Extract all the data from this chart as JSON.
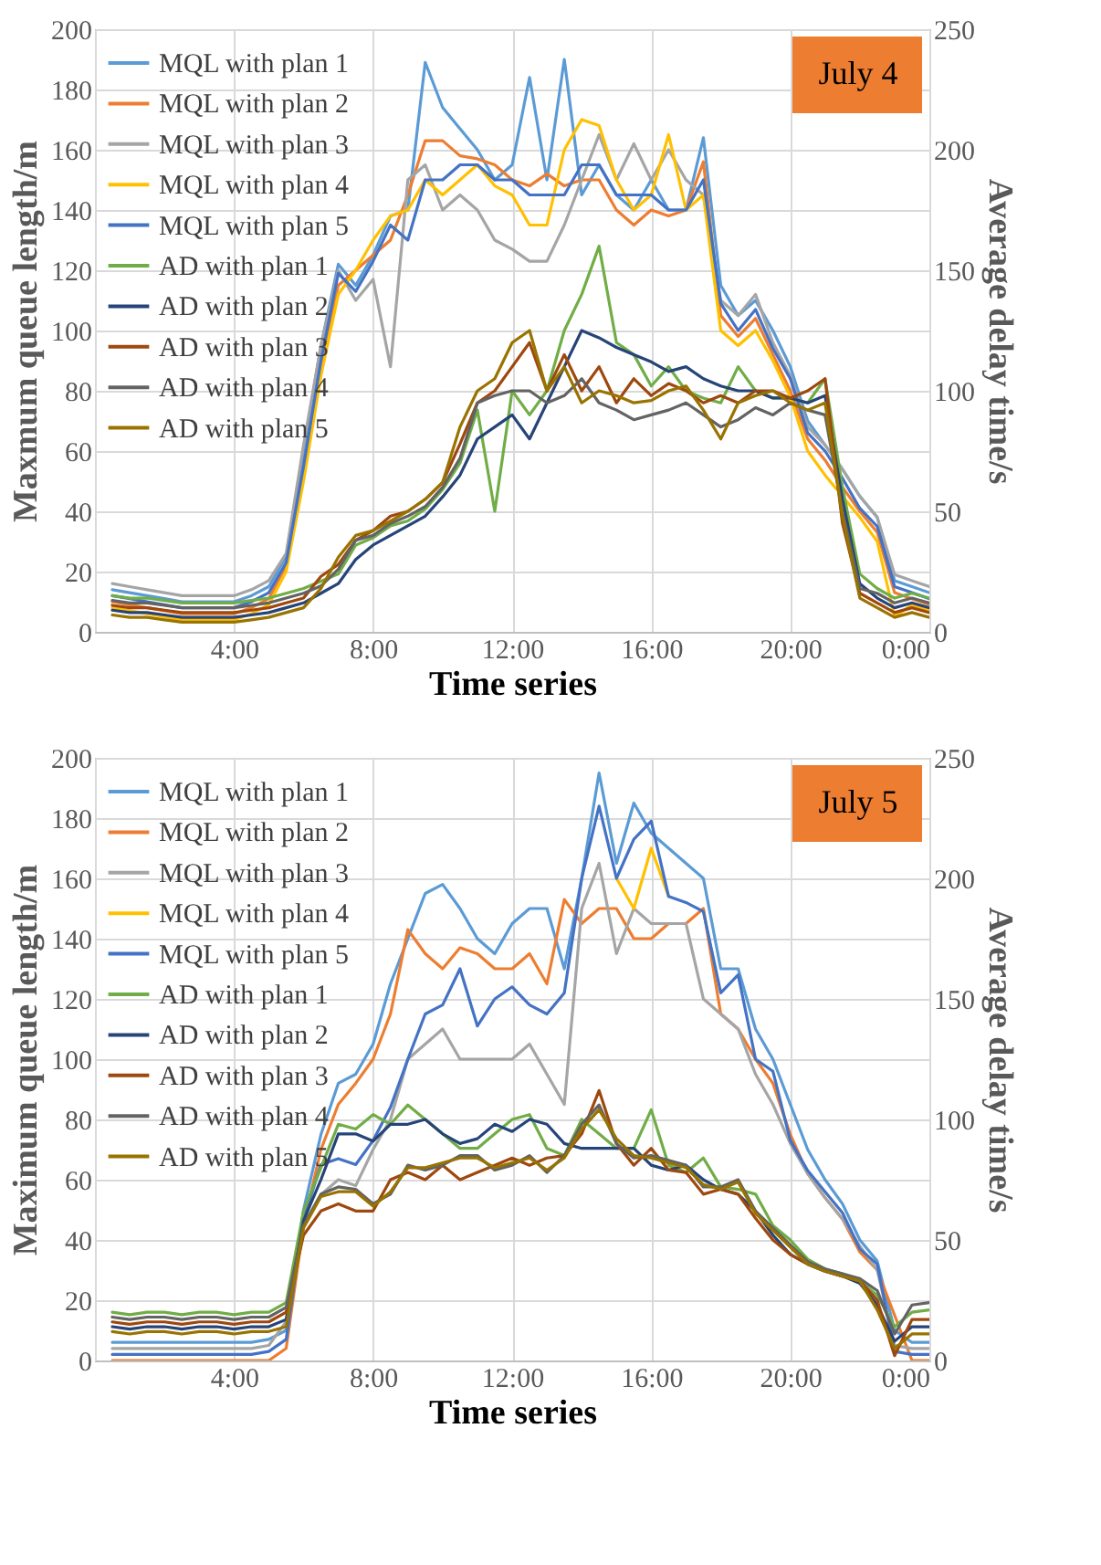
{
  "chart_data": [
    {
      "type": "line",
      "xlabel": "Time series",
      "ylabel": "Maxmum queue length/m",
      "y2label": "Average delay time/s",
      "annotations": [
        "July 4"
      ],
      "grid": true,
      "legend": "top left",
      "xlim": [
        0,
        24
      ],
      "xticks": [
        {
          "value": 0,
          "label": null
        },
        {
          "value": 4,
          "label": "4:00"
        },
        {
          "value": 8,
          "label": "8:00"
        },
        {
          "value": 12,
          "label": "12:00"
        },
        {
          "value": 16,
          "label": "16:00"
        },
        {
          "value": 20,
          "label": "20:00"
        },
        {
          "value": 24,
          "label": "0:00"
        }
      ],
      "ylim": [
        0,
        200
      ],
      "yticks": [
        0,
        20,
        40,
        60,
        80,
        100,
        120,
        140,
        160,
        180,
        200
      ],
      "y2lim": [
        0,
        250
      ],
      "y2ticks": [
        0,
        50,
        100,
        150,
        200,
        250
      ],
      "x": [
        0.5,
        1,
        1.5,
        2,
        2.5,
        3,
        3.5,
        4,
        4.5,
        5,
        5.5,
        6,
        6.5,
        7,
        7.5,
        8,
        8.5,
        9,
        9.5,
        10,
        10.5,
        11,
        11.5,
        12,
        12.5,
        13,
        13.5,
        14,
        14.5,
        15,
        15.5,
        16,
        16.5,
        17,
        17.5,
        18,
        18.5,
        19,
        19.5,
        20,
        20.5,
        21,
        21.5,
        22,
        22.5,
        23,
        23.5,
        24
      ],
      "series": [
        {
          "name": "MQL with  plan 1",
          "color": "#5b9bd5",
          "values": [
            14,
            13,
            12,
            11,
            10,
            10,
            10,
            10,
            12,
            15,
            25,
            60,
            95,
            122,
            115,
            125,
            138,
            140,
            189,
            174,
            167,
            160,
            150,
            155,
            184,
            150,
            190,
            145,
            155,
            145,
            140,
            150,
            140,
            140,
            164,
            115,
            105,
            110,
            100,
            88,
            70,
            62,
            54,
            45,
            38,
            17,
            15,
            13
          ]
        },
        {
          "name": "MQL with plan 2",
          "color": "#ed7d31",
          "values": [
            10,
            9,
            8,
            7,
            6,
            6,
            6,
            6,
            8,
            11,
            22,
            52,
            88,
            115,
            120,
            125,
            130,
            145,
            163,
            163,
            158,
            157,
            155,
            150,
            148,
            152,
            148,
            150,
            150,
            140,
            135,
            140,
            138,
            140,
            156,
            105,
            98,
            104,
            92,
            80,
            64,
            57,
            48,
            40,
            33,
            13,
            11,
            9
          ]
        },
        {
          "name": "MQL with plan 3",
          "color": "#a5a5a5",
          "values": [
            16,
            15,
            14,
            13,
            12,
            12,
            12,
            12,
            14,
            17,
            26,
            62,
            95,
            120,
            110,
            117,
            88,
            150,
            155,
            140,
            145,
            140,
            130,
            127,
            123,
            123,
            135,
            150,
            165,
            150,
            162,
            150,
            160,
            150,
            145,
            110,
            105,
            112,
            96,
            85,
            68,
            62,
            54,
            45,
            38,
            19,
            17,
            15
          ]
        },
        {
          "name": "MQL with plan 4",
          "color": "#ffc000",
          "values": [
            8,
            7,
            6,
            5,
            4,
            4,
            4,
            4,
            6,
            9,
            20,
            50,
            85,
            112,
            120,
            130,
            138,
            140,
            150,
            145,
            150,
            155,
            148,
            145,
            135,
            135,
            160,
            170,
            168,
            150,
            140,
            145,
            165,
            140,
            145,
            100,
            95,
            100,
            90,
            78,
            60,
            52,
            45,
            38,
            30,
            5,
            9,
            7
          ]
        },
        {
          "name": "MQL with plan 5",
          "color": "#4472c4",
          "values": [
            12,
            11,
            10,
            9,
            8,
            8,
            8,
            8,
            10,
            13,
            23,
            55,
            90,
            119,
            113,
            123,
            135,
            130,
            150,
            150,
            155,
            155,
            150,
            150,
            145,
            145,
            145,
            155,
            155,
            145,
            145,
            145,
            140,
            140,
            150,
            109,
            100,
            107,
            94,
            84,
            66,
            60,
            51,
            41,
            35,
            15,
            13,
            11
          ]
        },
        {
          "name": "AD with plan 1",
          "color": "#70ad47",
          "axis": "y2",
          "values": [
            15,
            14,
            14,
            13,
            12,
            12,
            12,
            12,
            13,
            14,
            16,
            18,
            21,
            24,
            36,
            39,
            44,
            46,
            51,
            59,
            70,
            92,
            50,
            100,
            90,
            100,
            125,
            140,
            160,
            120,
            115,
            102,
            110,
            100,
            97,
            95,
            110,
            100,
            97,
            97,
            95,
            105,
            60,
            24,
            18,
            14,
            16,
            14
          ]
        },
        {
          "name": "AD with plan 2",
          "color": "#264478",
          "axis": "y2",
          "values": [
            9,
            8,
            8,
            7,
            6,
            6,
            6,
            6,
            7,
            8,
            10,
            12,
            16,
            20,
            30,
            36,
            40,
            44,
            48,
            56,
            65,
            80,
            85,
            90,
            80,
            95,
            110,
            125,
            122,
            118,
            115,
            112,
            108,
            110,
            105,
            102,
            100,
            100,
            97,
            97,
            95,
            98,
            55,
            20,
            14,
            10,
            12,
            10
          ]
        },
        {
          "name": "AD with plan 3",
          "color": "#9e480e",
          "axis": "y2",
          "values": [
            11,
            10,
            10,
            9,
            8,
            8,
            8,
            8,
            9,
            10,
            12,
            14,
            23,
            28,
            38,
            42,
            48,
            50,
            55,
            62,
            78,
            95,
            100,
            110,
            120,
            100,
            115,
            100,
            110,
            95,
            105,
            98,
            103,
            100,
            95,
            98,
            95,
            100,
            100,
            97,
            100,
            105,
            45,
            16,
            12,
            8,
            10,
            8
          ]
        },
        {
          "name": "AD with plan 4",
          "color": "#636363",
          "axis": "y2",
          "values": [
            13,
            12,
            12,
            11,
            10,
            10,
            10,
            10,
            11,
            12,
            14,
            16,
            19,
            26,
            38,
            40,
            45,
            48,
            52,
            60,
            72,
            95,
            98,
            100,
            100,
            95,
            98,
            105,
            95,
            92,
            88,
            90,
            92,
            95,
            90,
            85,
            88,
            93,
            90,
            95,
            92,
            90,
            50,
            18,
            16,
            12,
            14,
            12
          ]
        },
        {
          "name": "AD with plan 5",
          "color": "#997300",
          "axis": "y2",
          "values": [
            7,
            6,
            6,
            5,
            4,
            4,
            4,
            4,
            5,
            6,
            8,
            10,
            18,
            31,
            40,
            42,
            46,
            50,
            55,
            62,
            85,
            100,
            105,
            120,
            125,
            100,
            110,
            95,
            100,
            98,
            95,
            96,
            100,
            102,
            92,
            80,
            95,
            98,
            100,
            95,
            92,
            95,
            48,
            14,
            10,
            6,
            8,
            6
          ]
        }
      ]
    },
    {
      "type": "line",
      "xlabel": "Time series",
      "ylabel": "Maximum queue length/m",
      "y2label": "Average delay time/s",
      "annotations": [
        "July 5"
      ],
      "grid": true,
      "legend": "top left",
      "xlim": [
        0,
        24
      ],
      "xticks": [
        {
          "value": 0,
          "label": null
        },
        {
          "value": 4,
          "label": "4:00"
        },
        {
          "value": 8,
          "label": "8:00"
        },
        {
          "value": 12,
          "label": "12:00"
        },
        {
          "value": 16,
          "label": "16:00"
        },
        {
          "value": 20,
          "label": "20:00"
        },
        {
          "value": 24,
          "label": "0:00"
        }
      ],
      "ylim": [
        0,
        200
      ],
      "yticks": [
        0,
        20,
        40,
        60,
        80,
        100,
        120,
        140,
        160,
        180,
        200
      ],
      "y2lim": [
        0,
        250
      ],
      "y2ticks": [
        0,
        50,
        100,
        150,
        200,
        250
      ],
      "x": [
        0.5,
        1,
        1.5,
        2,
        2.5,
        3,
        3.5,
        4,
        4.5,
        5,
        5.5,
        6,
        6.5,
        7,
        7.5,
        8,
        8.5,
        9,
        9.5,
        10,
        10.5,
        11,
        11.5,
        12,
        12.5,
        13,
        13.5,
        14,
        14.5,
        15,
        15.5,
        16,
        16.5,
        17,
        17.5,
        18,
        18.5,
        19,
        19.5,
        20,
        20.5,
        21,
        21.5,
        22,
        22.5,
        23,
        23.5,
        24
      ],
      "series": [
        {
          "name": "MQL with plan 1",
          "color": "#5b9bd5",
          "values": [
            6,
            6,
            6,
            6,
            6,
            6,
            6,
            6,
            6,
            7,
            10,
            50,
            75,
            92,
            95,
            105,
            125,
            140,
            155,
            158,
            150,
            140,
            135,
            145,
            150,
            150,
            130,
            160,
            195,
            165,
            185,
            175,
            170,
            165,
            160,
            130,
            130,
            110,
            100,
            85,
            70,
            60,
            52,
            40,
            33,
            10,
            6,
            6
          ]
        },
        {
          "name": "MQL with plan 2",
          "color": "#ed7d31",
          "values": [
            0,
            0,
            0,
            0,
            0,
            0,
            0,
            0,
            0,
            0,
            4,
            45,
            70,
            85,
            92,
            100,
            115,
            143,
            135,
            130,
            137,
            135,
            130,
            130,
            135,
            125,
            153,
            145,
            150,
            150,
            140,
            140,
            145,
            145,
            150,
            115,
            110,
            100,
            92,
            75,
            62,
            54,
            47,
            36,
            30,
            15,
            0,
            0
          ]
        },
        {
          "name": "MQL with plan 3",
          "color": "#a5a5a5",
          "values": [
            4,
            4,
            4,
            4,
            4,
            4,
            4,
            4,
            4,
            5,
            13,
            45,
            55,
            60,
            58,
            70,
            80,
            100,
            105,
            110,
            100,
            100,
            100,
            100,
            105,
            95,
            85,
            150,
            165,
            135,
            150,
            145,
            145,
            145,
            120,
            115,
            110,
            95,
            85,
            72,
            62,
            54,
            47,
            38,
            30,
            5,
            4,
            4
          ]
        },
        {
          "name": "MQL with plan 4",
          "color": "#ffc000",
          "values": [
            null,
            null,
            null,
            null,
            null,
            null,
            null,
            null,
            null,
            null,
            null,
            null,
            null,
            null,
            null,
            null,
            null,
            null,
            null,
            null,
            null,
            null,
            null,
            null,
            null,
            null,
            null,
            null,
            null,
            160,
            150,
            170,
            154,
            null,
            null,
            null,
            null,
            null,
            null,
            null,
            null,
            null,
            null,
            null,
            null,
            null,
            null,
            null
          ]
        },
        {
          "name": "MQL with plan 5",
          "color": "#4472c4",
          "values": [
            2,
            2,
            2,
            2,
            2,
            2,
            2,
            2,
            2,
            3,
            7,
            47,
            65,
            67,
            65,
            73,
            84,
            100,
            115,
            118,
            130,
            111,
            120,
            124,
            118,
            115,
            122,
            160,
            184,
            160,
            173,
            179,
            154,
            152,
            149,
            122,
            128,
            100,
            96,
            73,
            63,
            56,
            49,
            37,
            32,
            3,
            2,
            2
          ]
        },
        {
          "name": "AD with plan 1",
          "color": "#70ad47",
          "axis": "y2",
          "values": [
            20,
            19,
            20,
            20,
            19,
            20,
            20,
            19,
            20,
            20,
            24,
            62,
            80,
            98,
            96,
            102,
            98,
            106,
            100,
            94,
            88,
            88,
            94,
            100,
            102,
            88,
            85,
            100,
            94,
            88,
            88,
            104,
            81,
            78,
            84,
            72,
            71,
            69,
            56,
            50,
            42,
            38,
            36,
            33,
            27,
            14,
            20,
            21
          ]
        },
        {
          "name": "AD with plan 2",
          "color": "#264478",
          "axis": "y2",
          "values": [
            14,
            13,
            14,
            14,
            13,
            14,
            14,
            13,
            14,
            14,
            17,
            58,
            75,
            94,
            94,
            91,
            98,
            98,
            100,
            94,
            90,
            92,
            98,
            95,
            100,
            98,
            90,
            88,
            88,
            88,
            88,
            81,
            79,
            81,
            75,
            71,
            69,
            62,
            52,
            44,
            40,
            37,
            35,
            32,
            23,
            8,
            14,
            14
          ]
        },
        {
          "name": "AD with plan 3",
          "color": "#9e480e",
          "axis": "y2",
          "values": [
            16,
            15,
            16,
            16,
            15,
            16,
            16,
            15,
            16,
            16,
            20,
            52,
            62,
            65,
            62,
            62,
            75,
            78,
            75,
            81,
            75,
            78,
            81,
            84,
            81,
            84,
            85,
            94,
            112,
            90,
            81,
            88,
            79,
            78,
            69,
            71,
            69,
            59,
            50,
            44,
            40,
            37,
            35,
            33,
            25,
            2,
            17,
            17
          ]
        },
        {
          "name": "AD with plan 4",
          "color": "#636363",
          "axis": "y2",
          "values": [
            18,
            17,
            18,
            18,
            17,
            18,
            18,
            17,
            18,
            18,
            22,
            56,
            69,
            72,
            71,
            65,
            69,
            81,
            79,
            81,
            85,
            85,
            79,
            81,
            85,
            78,
            85,
            98,
            106,
            90,
            84,
            85,
            83,
            81,
            72,
            72,
            75,
            62,
            55,
            48,
            41,
            38,
            36,
            34,
            29,
            11,
            23,
            24
          ]
        },
        {
          "name": "AD with plan 5",
          "color": "#997300",
          "axis": "y2",
          "values": [
            12,
            11,
            12,
            12,
            11,
            12,
            12,
            11,
            12,
            12,
            14,
            55,
            68,
            70,
            70,
            64,
            70,
            80,
            80,
            82,
            84,
            84,
            80,
            82,
            84,
            79,
            84,
            96,
            104,
            92,
            85,
            84,
            82,
            80,
            73,
            71,
            74,
            61,
            54,
            47,
            40,
            37,
            35,
            33,
            21,
            5,
            11,
            11
          ]
        }
      ]
    }
  ]
}
